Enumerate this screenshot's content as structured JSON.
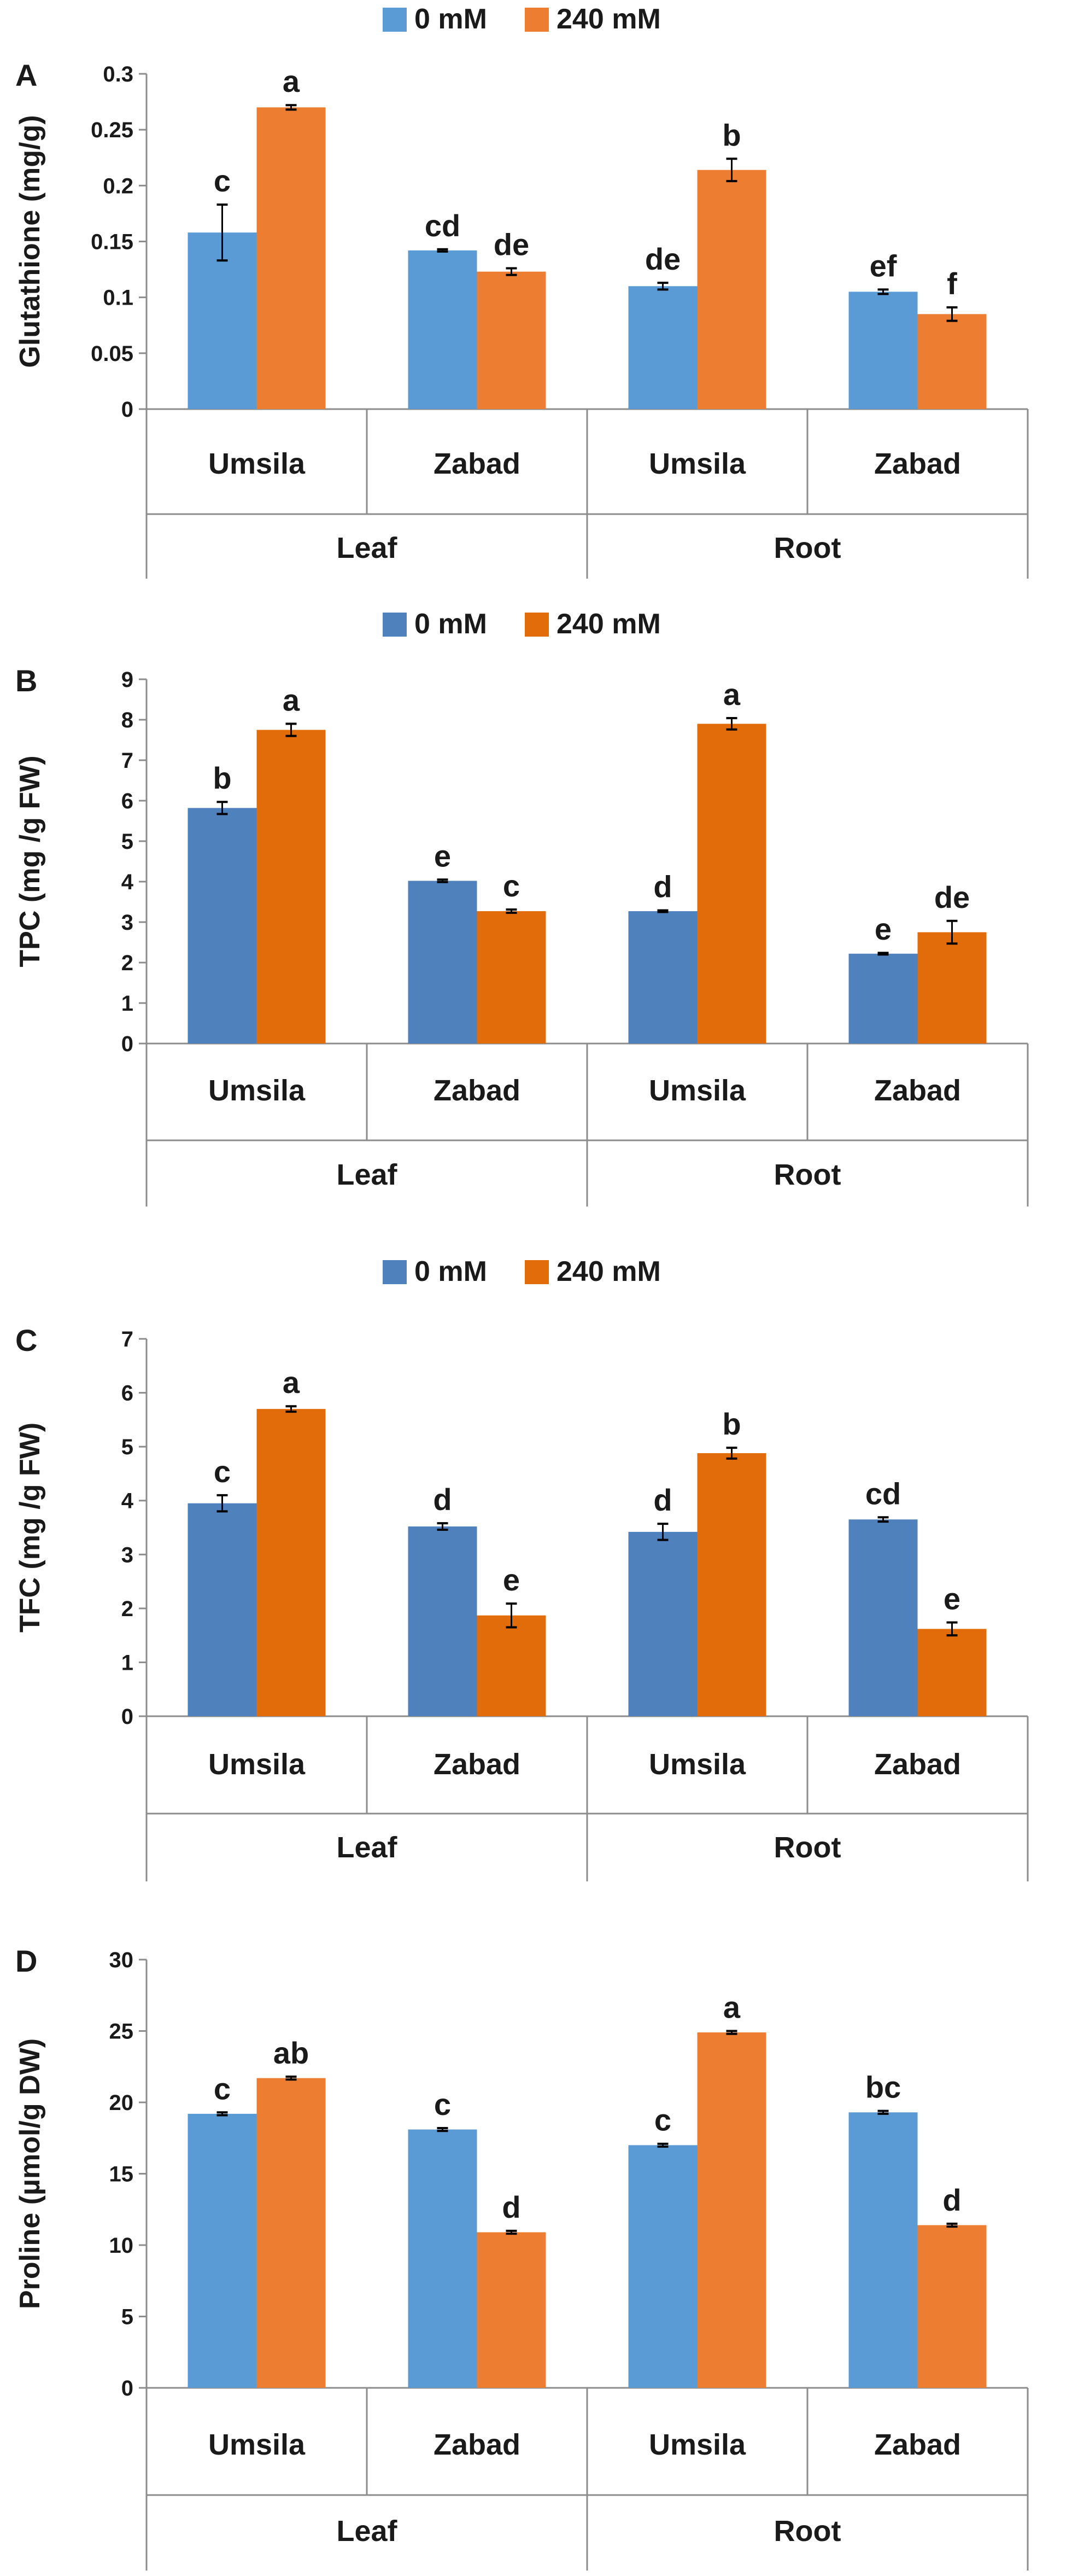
{
  "chart_data": [
    {
      "panel": "A",
      "type": "bar",
      "ylabel": "Glutathione  (mg/g)",
      "ylim": [
        0,
        0.3
      ],
      "ytick_step": 0.05,
      "yticks": [
        "0",
        "0.05",
        "0.1",
        "0.15",
        "0.2",
        "0.25",
        "0.3"
      ],
      "colors": [
        "#5B9BD5",
        "#ED7D31"
      ],
      "legend": [
        "0 mM",
        "240 mM"
      ],
      "categories": [
        "Umsila",
        "Zabad",
        "Umsila",
        "Zabad"
      ],
      "groups": [
        "Leaf",
        "Root"
      ],
      "series": [
        {
          "name": "0 mM",
          "values": [
            0.158,
            0.142,
            0.11,
            0.105
          ],
          "errors": [
            0.025,
            0.001,
            0.003,
            0.002
          ],
          "letters": [
            "c",
            "cd",
            "de",
            "ef"
          ]
        },
        {
          "name": "240 mM",
          "values": [
            0.27,
            0.123,
            0.214,
            0.085
          ],
          "errors": [
            0.002,
            0.003,
            0.01,
            0.006
          ],
          "letters": [
            "a",
            "de",
            "b",
            "f"
          ]
        }
      ]
    },
    {
      "panel": "B",
      "type": "bar",
      "ylabel": "TPC  (mg /g  FW)",
      "ylim": [
        0,
        9
      ],
      "ytick_step": 1,
      "yticks": [
        "0",
        "1",
        "2",
        "3",
        "4",
        "5",
        "6",
        "7",
        "8",
        "9"
      ],
      "colors": [
        "#4F81BD",
        "#E36C0A"
      ],
      "legend": [
        "0 mM",
        "240 mM"
      ],
      "categories": [
        "Umsila",
        "Zabad",
        "Umsila",
        "Zabad"
      ],
      "groups": [
        "Leaf",
        "Root"
      ],
      "series": [
        {
          "name": "0 mM",
          "values": [
            5.82,
            4.02,
            3.27,
            2.22
          ],
          "errors": [
            0.15,
            0.03,
            0.02,
            0.02
          ],
          "letters": [
            "b",
            "e",
            "d",
            "e"
          ]
        },
        {
          "name": "240 mM",
          "values": [
            7.75,
            3.27,
            7.9,
            2.75
          ],
          "errors": [
            0.15,
            0.04,
            0.14,
            0.28
          ],
          "letters": [
            "a",
            "c",
            "a",
            "de"
          ]
        }
      ]
    },
    {
      "panel": "C",
      "type": "bar",
      "ylabel": "TFC  (mg /g  FW)",
      "ylim": [
        0,
        7
      ],
      "ytick_step": 1,
      "yticks": [
        "0",
        "1",
        "2",
        "3",
        "4",
        "5",
        "6",
        "7"
      ],
      "colors": [
        "#4F81BD",
        "#E36C0A"
      ],
      "legend": [
        "0 mM",
        "240 mM"
      ],
      "categories": [
        "Umsila",
        "Zabad",
        "Umsila",
        "Zabad"
      ],
      "groups": [
        "Leaf",
        "Root"
      ],
      "series": [
        {
          "name": "0 mM",
          "values": [
            3.95,
            3.52,
            3.42,
            3.65
          ],
          "errors": [
            0.15,
            0.06,
            0.15,
            0.04
          ],
          "letters": [
            "c",
            "d",
            "d",
            "cd"
          ]
        },
        {
          "name": "240 mM",
          "values": [
            5.7,
            1.87,
            4.88,
            1.62
          ],
          "errors": [
            0.05,
            0.22,
            0.1,
            0.12
          ],
          "letters": [
            "a",
            "e",
            "b",
            "e"
          ]
        }
      ]
    },
    {
      "panel": "D",
      "type": "bar",
      "ylabel": "Proline  (µmol/g DW)",
      "ylim": [
        0,
        30
      ],
      "ytick_step": 5,
      "yticks": [
        "0",
        "5",
        "10",
        "15",
        "20",
        "25",
        "30"
      ],
      "colors": [
        "#5B9BD5",
        "#ED7D31"
      ],
      "legend": [],
      "categories": [
        "Umsila",
        "Zabad",
        "Umsila",
        "Zabad"
      ],
      "groups": [
        "Leaf",
        "Root"
      ],
      "series": [
        {
          "name": "0 mM",
          "values": [
            19.2,
            18.1,
            17.0,
            19.3
          ],
          "errors": [
            0.1,
            0.1,
            0.1,
            0.1
          ],
          "letters": [
            "c",
            "c",
            "c",
            "bc"
          ]
        },
        {
          "name": "240 mM",
          "values": [
            21.7,
            10.9,
            24.9,
            11.4
          ],
          "errors": [
            0.1,
            0.1,
            0.1,
            0.1
          ],
          "letters": [
            "ab",
            "d",
            "a",
            "d"
          ]
        }
      ]
    }
  ]
}
